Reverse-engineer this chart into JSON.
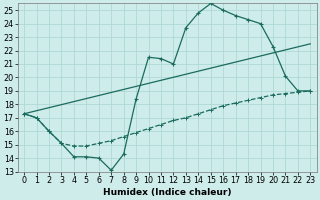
{
  "xlabel": "Humidex (Indice chaleur)",
  "bg_color": "#ceecea",
  "grid_color": "#aed8d4",
  "line_color": "#1a6b5e",
  "xlim": [
    -0.5,
    23.5
  ],
  "ylim": [
    13,
    25.5
  ],
  "xticks": [
    0,
    1,
    2,
    3,
    4,
    5,
    6,
    7,
    8,
    9,
    10,
    11,
    12,
    13,
    14,
    15,
    16,
    17,
    18,
    19,
    20,
    21,
    22,
    23
  ],
  "yticks": [
    13,
    14,
    15,
    16,
    17,
    18,
    19,
    20,
    21,
    22,
    23,
    24,
    25
  ],
  "line1_x": [
    0,
    1,
    2,
    3,
    4,
    5,
    6,
    7,
    8,
    9,
    10,
    11,
    12,
    13,
    14,
    15,
    16,
    17,
    18,
    19,
    20,
    21,
    22,
    23
  ],
  "line1_y": [
    17.3,
    17.0,
    16.0,
    15.1,
    14.1,
    14.1,
    14.0,
    13.1,
    14.3,
    18.4,
    21.5,
    21.4,
    21.0,
    23.7,
    24.8,
    25.5,
    25.0,
    24.6,
    24.3,
    24.0,
    22.3,
    20.1,
    19.0,
    19.0
  ],
  "line2_x": [
    0,
    1,
    2,
    3,
    4,
    5,
    6,
    7,
    8,
    9,
    10,
    11,
    12,
    13,
    14,
    15,
    16,
    17,
    18,
    19,
    20,
    21,
    22,
    23
  ],
  "line2_y": [
    17.3,
    17.0,
    16.0,
    15.1,
    14.9,
    14.9,
    15.1,
    15.3,
    15.6,
    15.9,
    16.2,
    16.5,
    16.8,
    17.0,
    17.3,
    17.6,
    17.9,
    18.1,
    18.3,
    18.5,
    18.7,
    18.8,
    18.9,
    19.0
  ],
  "line3_x": [
    0,
    23
  ],
  "line3_y": [
    17.3,
    22.5
  ],
  "marker_size": 3.5,
  "linewidth": 0.9,
  "tick_fontsize": 5.8
}
